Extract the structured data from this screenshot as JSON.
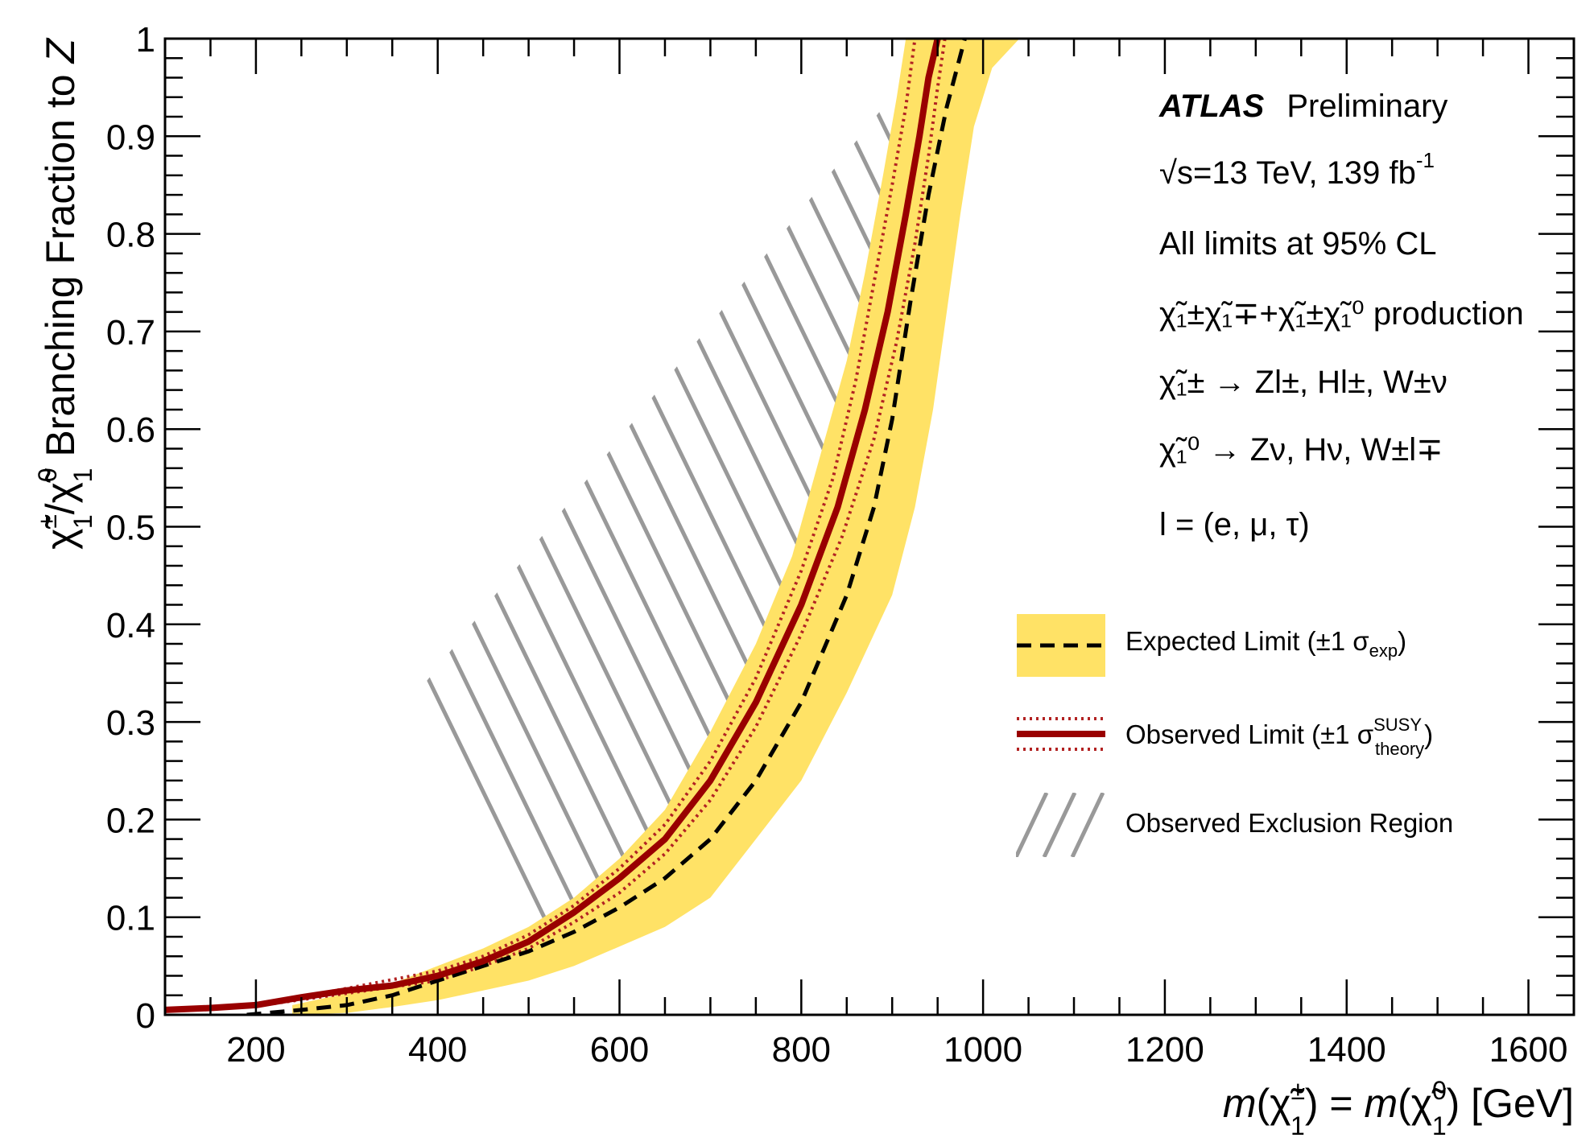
{
  "chart_data": {
    "type": "line",
    "title": "",
    "xlabel": "m(χ̃₁±) = m(χ̃₁⁰) [GeV]",
    "ylabel": "χ̃₁±/χ̃₁⁰ Branching Fraction to Z",
    "xlim": [
      100,
      1650
    ],
    "ylim": [
      0,
      1
    ],
    "x_ticks": [
      "200",
      "400",
      "600",
      "800",
      "1000",
      "1200",
      "1400",
      "1600"
    ],
    "y_ticks": [
      "0",
      "0.1",
      "0.2",
      "0.3",
      "0.4",
      "0.5",
      "0.6",
      "0.7",
      "0.8",
      "0.9",
      "1"
    ],
    "grid": false,
    "legend_position": "right",
    "annotations": {
      "atlas": "ATLAS",
      "preliminary": "Preliminary",
      "energy": "√s=13 TeV, 139 fb",
      "energy_sup": "-1",
      "cl": "All limits at 95% CL",
      "production": "χ̃₁±χ̃₁∓+χ̃₁±χ̃₁⁰ production",
      "decay_chargino": "χ̃₁± → Zl±, Hl±, W±ν",
      "decay_neutralino": "χ̃₁⁰ → Zν, Hν, W±l∓",
      "lepton_def": "l = (e, μ, τ)"
    },
    "colors": {
      "band": "#ffe266",
      "expected": "#000000",
      "observed": "#990000",
      "observed_theory": "#b22222",
      "hatch": "#999999"
    },
    "series": [
      {
        "name": "Expected Limit (±1 σexp)",
        "style": "dashed",
        "points": [
          [
            190,
            0.0
          ],
          [
            250,
            0.005
          ],
          [
            300,
            0.01
          ],
          [
            350,
            0.02
          ],
          [
            400,
            0.035
          ],
          [
            450,
            0.05
          ],
          [
            500,
            0.065
          ],
          [
            550,
            0.085
          ],
          [
            600,
            0.11
          ],
          [
            650,
            0.14
          ],
          [
            700,
            0.18
          ],
          [
            750,
            0.24
          ],
          [
            800,
            0.32
          ],
          [
            850,
            0.43
          ],
          [
            880,
            0.52
          ],
          [
            900,
            0.61
          ],
          [
            920,
            0.73
          ],
          [
            940,
            0.84
          ],
          [
            960,
            0.93
          ],
          [
            980,
            1.0
          ]
        ]
      },
      {
        "name": "Observed Limit (±1 σtheorySUSY)",
        "style": "solid",
        "points": [
          [
            100,
            0.005
          ],
          [
            150,
            0.007
          ],
          [
            200,
            0.01
          ],
          [
            250,
            0.018
          ],
          [
            300,
            0.025
          ],
          [
            350,
            0.03
          ],
          [
            400,
            0.04
          ],
          [
            450,
            0.055
          ],
          [
            500,
            0.075
          ],
          [
            550,
            0.105
          ],
          [
            600,
            0.14
          ],
          [
            650,
            0.18
          ],
          [
            700,
            0.24
          ],
          [
            750,
            0.32
          ],
          [
            800,
            0.42
          ],
          [
            840,
            0.52
          ],
          [
            870,
            0.62
          ],
          [
            895,
            0.72
          ],
          [
            915,
            0.82
          ],
          [
            930,
            0.9
          ],
          [
            940,
            0.96
          ],
          [
            950,
            1.0
          ]
        ]
      },
      {
        "name": "+1σ theory",
        "style": "dotted",
        "points": [
          [
            100,
            0.005
          ],
          [
            200,
            0.01
          ],
          [
            300,
            0.027
          ],
          [
            400,
            0.045
          ],
          [
            450,
            0.06
          ],
          [
            500,
            0.082
          ],
          [
            550,
            0.112
          ],
          [
            600,
            0.15
          ],
          [
            650,
            0.195
          ],
          [
            700,
            0.26
          ],
          [
            750,
            0.345
          ],
          [
            800,
            0.455
          ],
          [
            835,
            0.55
          ],
          [
            860,
            0.65
          ],
          [
            880,
            0.75
          ],
          [
            900,
            0.85
          ],
          [
            915,
            0.93
          ],
          [
            925,
            1.0
          ]
        ]
      },
      {
        "name": "-1σ theory",
        "style": "dotted",
        "points": [
          [
            100,
            0.004
          ],
          [
            200,
            0.009
          ],
          [
            300,
            0.022
          ],
          [
            400,
            0.035
          ],
          [
            450,
            0.05
          ],
          [
            500,
            0.068
          ],
          [
            550,
            0.095
          ],
          [
            600,
            0.125
          ],
          [
            650,
            0.165
          ],
          [
            700,
            0.22
          ],
          [
            750,
            0.295
          ],
          [
            800,
            0.39
          ],
          [
            845,
            0.49
          ],
          [
            880,
            0.59
          ],
          [
            905,
            0.69
          ],
          [
            925,
            0.79
          ],
          [
            940,
            0.88
          ],
          [
            950,
            0.95
          ],
          [
            958,
            1.0
          ]
        ]
      },
      {
        "name": "expected band upper edge",
        "style": "band-upper",
        "points": [
          [
            240,
            0.01
          ],
          [
            300,
            0.022
          ],
          [
            350,
            0.032
          ],
          [
            400,
            0.05
          ],
          [
            450,
            0.068
          ],
          [
            500,
            0.09
          ],
          [
            550,
            0.12
          ],
          [
            600,
            0.16
          ],
          [
            650,
            0.21
          ],
          [
            700,
            0.29
          ],
          [
            750,
            0.38
          ],
          [
            790,
            0.47
          ],
          [
            820,
            0.57
          ],
          [
            850,
            0.67
          ],
          [
            870,
            0.76
          ],
          [
            890,
            0.86
          ],
          [
            905,
            0.94
          ],
          [
            915,
            1.0
          ]
        ]
      },
      {
        "name": "expected band lower edge",
        "style": "band-lower",
        "points": [
          [
            240,
            0.0
          ],
          [
            300,
            0.002
          ],
          [
            350,
            0.008
          ],
          [
            400,
            0.015
          ],
          [
            450,
            0.025
          ],
          [
            500,
            0.035
          ],
          [
            550,
            0.05
          ],
          [
            600,
            0.07
          ],
          [
            650,
            0.09
          ],
          [
            700,
            0.12
          ],
          [
            750,
            0.18
          ],
          [
            800,
            0.24
          ],
          [
            850,
            0.33
          ],
          [
            900,
            0.43
          ],
          [
            925,
            0.52
          ],
          [
            945,
            0.62
          ],
          [
            960,
            0.72
          ],
          [
            975,
            0.82
          ],
          [
            990,
            0.91
          ],
          [
            1010,
            0.97
          ],
          [
            1040,
            1.0
          ]
        ]
      }
    ],
    "legend": [
      {
        "label": "Expected Limit (±1 σ",
        "sub": "exp",
        "tail": ")"
      },
      {
        "label": "Observed Limit (±1 σ",
        "sup": "SUSY",
        "sub": "theory",
        "tail": ")"
      },
      {
        "label": "Observed Exclusion Region"
      }
    ]
  }
}
